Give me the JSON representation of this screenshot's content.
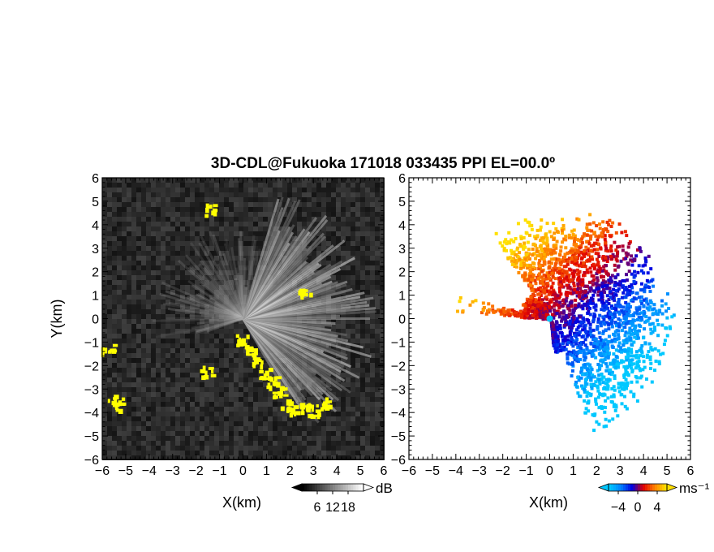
{
  "title": "3D-CDL@Fukuoka 171018 033435 PPI EL=00.0º",
  "chart_data": [
    {
      "type": "heatmap",
      "panel": "left",
      "xlabel": "X(km)",
      "ylabel": "Y(km)",
      "xlim": [
        -6,
        6
      ],
      "ylim": [
        -6,
        6
      ],
      "xticks": [
        -6,
        -5,
        -4,
        -3,
        -2,
        -1,
        0,
        1,
        2,
        3,
        4,
        5,
        6
      ],
      "yticks": [
        -6,
        -5,
        -4,
        -3,
        -2,
        -1,
        0,
        1,
        2,
        3,
        4,
        5,
        6
      ],
      "grid": false,
      "colorbar": {
        "label": "dB",
        "ticks": [
          "6",
          "12",
          "18"
        ],
        "range": [
          0,
          24
        ],
        "colors": [
          "#000000",
          "#ffffff"
        ],
        "mask_color": "#ffff00"
      }
    },
    {
      "type": "heatmap",
      "panel": "right",
      "xlabel": "X(km)",
      "ylabel": "",
      "xlim": [
        -6,
        6
      ],
      "ylim": [
        -6,
        6
      ],
      "xticks": [
        -6,
        -5,
        -4,
        -3,
        -2,
        -1,
        0,
        1,
        2,
        3,
        4,
        5,
        6
      ],
      "yticks": [
        -6,
        -5,
        -4,
        -3,
        -2,
        -1,
        0,
        1,
        2,
        3,
        4,
        5,
        6
      ],
      "grid": false,
      "colorbar": {
        "label": "ms⁻¹",
        "ticks": [
          "−4",
          "0",
          "4"
        ],
        "range": [
          -6,
          6
        ],
        "colors": [
          "#00c8ff",
          "#0080ff",
          "#0000e0",
          "#e00000",
          "#ff8000",
          "#ffe000"
        ]
      }
    }
  ]
}
